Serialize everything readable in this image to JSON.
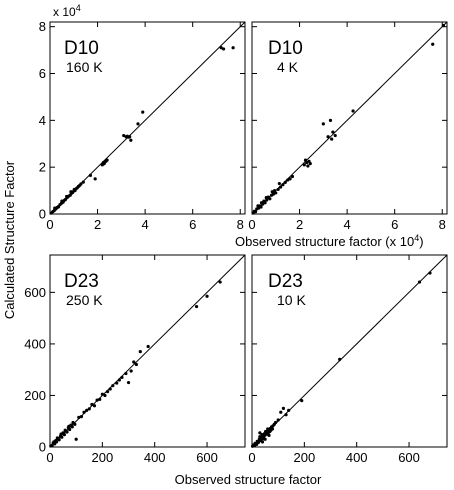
{
  "chart_data": [
    {
      "type": "scatter",
      "label": "D10",
      "condition": "160 K",
      "multiplier": "x 10",
      "multiplier_exp": "4",
      "xlim": [
        0,
        8.2
      ],
      "ylim": [
        0,
        8.2
      ],
      "xticks": [
        0,
        2,
        4,
        6,
        8
      ],
      "yticks": [
        0,
        2,
        4,
        6,
        8
      ],
      "xtick_labels": [
        "0",
        "2",
        "4",
        "6",
        "8"
      ],
      "ytick_labels": [
        "0",
        "2",
        "4",
        "6",
        "8"
      ],
      "diagonal": [
        [
          0,
          0
        ],
        [
          8.2,
          8.2
        ]
      ],
      "points": [
        [
          0.05,
          0.04
        ],
        [
          0.12,
          0.1
        ],
        [
          0.18,
          0.15
        ],
        [
          0.25,
          0.22
        ],
        [
          0.3,
          0.28
        ],
        [
          0.36,
          0.32
        ],
        [
          0.42,
          0.4
        ],
        [
          0.48,
          0.46
        ],
        [
          0.55,
          0.5
        ],
        [
          0.6,
          0.58
        ],
        [
          0.65,
          0.62
        ],
        [
          0.72,
          0.7
        ],
        [
          0.78,
          0.76
        ],
        [
          0.85,
          0.8
        ],
        [
          0.9,
          0.88
        ],
        [
          0.95,
          0.92
        ],
        [
          1.0,
          0.98
        ],
        [
          1.05,
          1.0
        ],
        [
          1.1,
          1.08
        ],
        [
          1.15,
          1.12
        ],
        [
          1.2,
          1.18
        ],
        [
          1.25,
          1.22
        ],
        [
          1.3,
          1.28
        ],
        [
          1.4,
          1.36
        ],
        [
          0.2,
          0.25
        ],
        [
          0.35,
          0.3
        ],
        [
          0.5,
          0.55
        ],
        [
          0.7,
          0.75
        ],
        [
          0.88,
          0.95
        ],
        [
          1.02,
          1.05
        ],
        [
          1.7,
          1.65
        ],
        [
          1.9,
          1.5
        ],
        [
          2.2,
          2.1
        ],
        [
          2.25,
          2.2
        ],
        [
          2.3,
          2.22
        ],
        [
          2.35,
          2.25
        ],
        [
          2.4,
          2.3
        ],
        [
          2.28,
          2.15
        ],
        [
          3.1,
          3.35
        ],
        [
          3.2,
          3.3
        ],
        [
          3.25,
          3.32
        ],
        [
          3.3,
          3.28
        ],
        [
          3.35,
          3.3
        ],
        [
          3.4,
          3.15
        ],
        [
          3.7,
          3.85
        ],
        [
          3.9,
          4.35
        ],
        [
          7.2,
          7.1
        ],
        [
          7.3,
          7.05
        ],
        [
          7.7,
          7.1
        ]
      ]
    },
    {
      "type": "scatter",
      "label": "D10",
      "condition": "4 K",
      "xlabel": "Observed structure factor (x 10",
      "xlabel_exp": "4",
      "xlabel_end": ")",
      "xlim": [
        0,
        8.2
      ],
      "ylim": [
        0,
        8.2
      ],
      "xticks": [
        0,
        2,
        4,
        6,
        8
      ],
      "yticks": [
        0,
        2,
        4,
        6,
        8
      ],
      "xtick_labels": [
        "0",
        "2",
        "4",
        "6",
        "8"
      ],
      "diagonal": [
        [
          0,
          0
        ],
        [
          8.2,
          8.2
        ]
      ],
      "points": [
        [
          0.05,
          0.04
        ],
        [
          0.1,
          0.12
        ],
        [
          0.15,
          0.1
        ],
        [
          0.2,
          0.22
        ],
        [
          0.28,
          0.25
        ],
        [
          0.32,
          0.35
        ],
        [
          0.38,
          0.3
        ],
        [
          0.45,
          0.42
        ],
        [
          0.5,
          0.55
        ],
        [
          0.55,
          0.48
        ],
        [
          0.62,
          0.6
        ],
        [
          0.68,
          0.72
        ],
        [
          0.75,
          0.65
        ],
        [
          0.82,
          0.8
        ],
        [
          0.9,
          0.85
        ],
        [
          0.95,
          1.0
        ],
        [
          1.0,
          0.9
        ],
        [
          1.1,
          1.05
        ],
        [
          1.2,
          1.15
        ],
        [
          1.3,
          1.25
        ],
        [
          1.4,
          1.35
        ],
        [
          1.5,
          1.45
        ],
        [
          0.25,
          0.35
        ],
        [
          0.4,
          0.48
        ],
        [
          0.6,
          0.7
        ],
        [
          0.85,
          0.95
        ],
        [
          1.15,
          1.3
        ],
        [
          1.6,
          1.5
        ],
        [
          1.7,
          1.6
        ],
        [
          2.2,
          2.1
        ],
        [
          2.25,
          2.3
        ],
        [
          2.3,
          2.2
        ],
        [
          2.35,
          2.05
        ],
        [
          2.4,
          2.25
        ],
        [
          2.45,
          2.15
        ],
        [
          3.0,
          3.85
        ],
        [
          3.2,
          3.3
        ],
        [
          3.35,
          3.2
        ],
        [
          3.4,
          3.5
        ],
        [
          3.5,
          3.35
        ],
        [
          3.3,
          4.0
        ],
        [
          4.25,
          4.4
        ],
        [
          7.6,
          7.25
        ],
        [
          8.05,
          8.05
        ]
      ]
    },
    {
      "type": "scatter",
      "label": "D23",
      "condition": "250 K",
      "xlim": [
        0,
        745
      ],
      "ylim": [
        0,
        745
      ],
      "xticks": [
        0,
        200,
        400,
        600
      ],
      "yticks": [
        0,
        200,
        400,
        600
      ],
      "xtick_labels": [
        "0",
        "200",
        "400",
        "600"
      ],
      "ytick_labels": [
        "0",
        "200",
        "400",
        "600"
      ],
      "diagonal": [
        [
          0,
          0
        ],
        [
          745,
          745
        ]
      ],
      "points": [
        [
          3,
          4
        ],
        [
          8,
          6
        ],
        [
          12,
          15
        ],
        [
          18,
          12
        ],
        [
          22,
          25
        ],
        [
          25,
          20
        ],
        [
          30,
          34
        ],
        [
          35,
          28
        ],
        [
          40,
          42
        ],
        [
          45,
          38
        ],
        [
          50,
          55
        ],
        [
          55,
          48
        ],
        [
          60,
          62
        ],
        [
          65,
          58
        ],
        [
          70,
          75
        ],
        [
          75,
          68
        ],
        [
          80,
          85
        ],
        [
          85,
          78
        ],
        [
          90,
          92
        ],
        [
          95,
          88
        ],
        [
          15,
          20
        ],
        [
          28,
          35
        ],
        [
          42,
          50
        ],
        [
          58,
          65
        ],
        [
          72,
          80
        ],
        [
          88,
          95
        ],
        [
          100,
          30
        ],
        [
          110,
          115
        ],
        [
          120,
          118
        ],
        [
          130,
          135
        ],
        [
          140,
          142
        ],
        [
          150,
          148
        ],
        [
          160,
          165
        ],
        [
          170,
          160
        ],
        [
          180,
          182
        ],
        [
          190,
          185
        ],
        [
          200,
          205
        ],
        [
          210,
          200
        ],
        [
          220,
          215
        ],
        [
          230,
          225
        ],
        [
          240,
          238
        ],
        [
          255,
          248
        ],
        [
          265,
          260
        ],
        [
          275,
          270
        ],
        [
          290,
          285
        ],
        [
          300,
          250
        ],
        [
          310,
          295
        ],
        [
          320,
          330
        ],
        [
          330,
          320
        ],
        [
          345,
          370
        ],
        [
          375,
          390
        ],
        [
          560,
          545
        ],
        [
          600,
          585
        ],
        [
          650,
          640
        ]
      ]
    },
    {
      "type": "scatter",
      "label": "D23",
      "condition": "10 K",
      "xlim": [
        0,
        745
      ],
      "ylim": [
        0,
        745
      ],
      "xticks": [
        0,
        200,
        400,
        600
      ],
      "yticks": [
        0,
        200,
        400,
        600
      ],
      "xtick_labels": [
        "0",
        "200",
        "400",
        "600"
      ],
      "diagonal": [
        [
          0,
          0
        ],
        [
          745,
          745
        ]
      ],
      "points": [
        [
          2,
          3
        ],
        [
          5,
          8
        ],
        [
          10,
          6
        ],
        [
          12,
          14
        ],
        [
          18,
          10
        ],
        [
          20,
          22
        ],
        [
          25,
          18
        ],
        [
          28,
          30
        ],
        [
          32,
          25
        ],
        [
          35,
          38
        ],
        [
          40,
          32
        ],
        [
          42,
          45
        ],
        [
          45,
          40
        ],
        [
          48,
          52
        ],
        [
          50,
          46
        ],
        [
          55,
          58
        ],
        [
          58,
          50
        ],
        [
          60,
          62
        ],
        [
          62,
          55
        ],
        [
          65,
          68
        ],
        [
          68,
          60
        ],
        [
          70,
          72
        ],
        [
          72,
          65
        ],
        [
          75,
          78
        ],
        [
          78,
          70
        ],
        [
          80,
          82
        ],
        [
          30,
          40
        ],
        [
          38,
          48
        ],
        [
          52,
          60
        ],
        [
          60,
          70
        ],
        [
          30,
          55
        ],
        [
          40,
          20
        ],
        [
          50,
          30
        ],
        [
          65,
          45
        ],
        [
          85,
          88
        ],
        [
          90,
          95
        ],
        [
          100,
          105
        ],
        [
          110,
          135
        ],
        [
          120,
          150
        ],
        [
          130,
          125
        ],
        [
          140,
          142
        ],
        [
          190,
          180
        ],
        [
          335,
          340
        ],
        [
          640,
          640
        ],
        [
          680,
          675
        ]
      ]
    }
  ],
  "axes": {
    "left_label": "Calculated Structure Factor",
    "bottom_label": "Observed structure factor"
  }
}
